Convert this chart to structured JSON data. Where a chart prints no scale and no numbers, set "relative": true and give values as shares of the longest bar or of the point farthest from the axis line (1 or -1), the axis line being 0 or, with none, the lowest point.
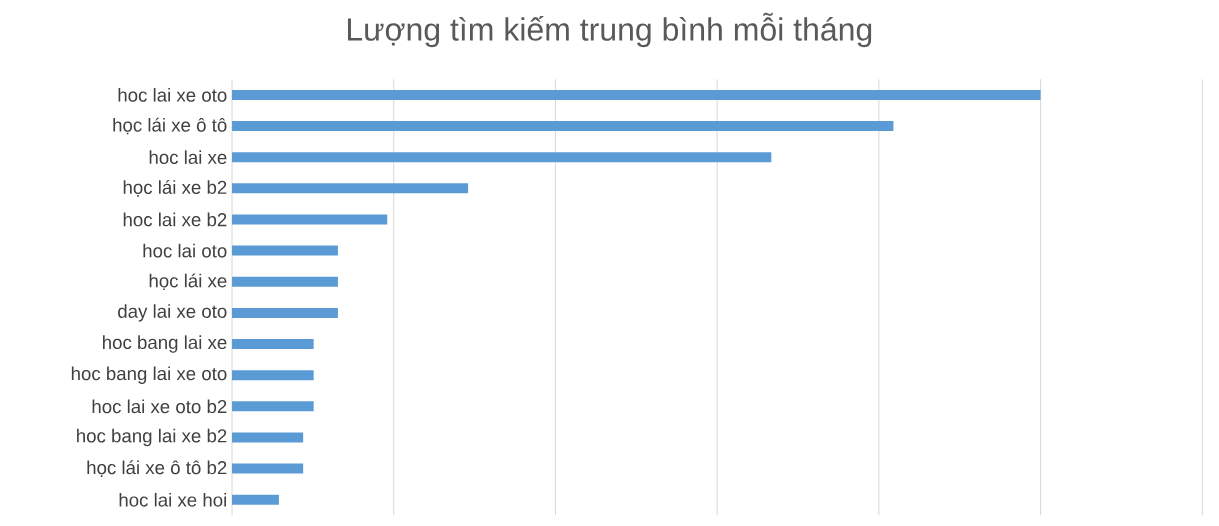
{
  "chart_data": {
    "type": "bar",
    "orientation": "horizontal",
    "relative": true,
    "title": "Lượng tìm kiếm trung bình mỗi tháng",
    "categories": [
      "hoc lai xe oto",
      "học lái xe ô tô",
      "hoc lai xe",
      "học lái xe b2",
      "hoc lai xe b2",
      "hoc lai oto",
      "học lái xe",
      "day lai xe oto",
      "hoc bang lai xe",
      "hoc bang lai xe oto",
      "hoc lai xe oto b2",
      "hoc bang lai xe b2",
      "học lái xe ô tô b2",
      "hoc lai xe hoi"
    ],
    "values": [
      1,
      0.818,
      0.667,
      0.292,
      0.192,
      0.131,
      0.131,
      0.131,
      0.101,
      0.101,
      0.101,
      0.088,
      0.088,
      0.058
    ],
    "color": "#5b9bd5",
    "grid": "x"
  }
}
